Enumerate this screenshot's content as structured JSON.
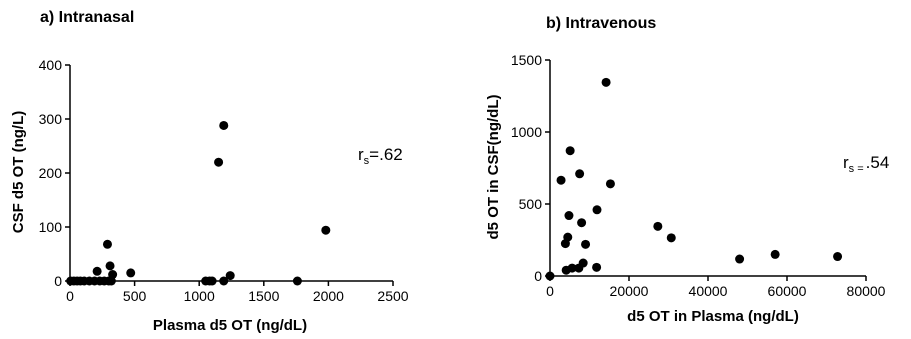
{
  "chart_data": [
    {
      "type": "scatter",
      "panel_title": "a) Intranasal",
      "xlabel": "Plasma d5 OT (ng/dL)",
      "ylabel": "CSF d5 OT (ng/L)",
      "xlim": [
        0,
        2500
      ],
      "ylim": [
        0,
        400
      ],
      "xticks": [
        "0",
        "500",
        "1000",
        "1500",
        "2000",
        "2500"
      ],
      "yticks": [
        "0",
        "100",
        "200",
        "300",
        "400"
      ],
      "correlation": {
        "symbol": "r",
        "subscript": "s",
        "value": "=.62"
      },
      "points": [
        {
          "x": 5,
          "y": 0
        },
        {
          "x": 30,
          "y": 0
        },
        {
          "x": 55,
          "y": 0
        },
        {
          "x": 80,
          "y": 0
        },
        {
          "x": 110,
          "y": 0
        },
        {
          "x": 150,
          "y": 0
        },
        {
          "x": 190,
          "y": 0
        },
        {
          "x": 230,
          "y": 0
        },
        {
          "x": 265,
          "y": 0
        },
        {
          "x": 300,
          "y": 0
        },
        {
          "x": 320,
          "y": 0
        },
        {
          "x": 210,
          "y": 18
        },
        {
          "x": 290,
          "y": 68
        },
        {
          "x": 310,
          "y": 28
        },
        {
          "x": 330,
          "y": 12
        },
        {
          "x": 470,
          "y": 15
        },
        {
          "x": 1050,
          "y": 0
        },
        {
          "x": 1080,
          "y": 0
        },
        {
          "x": 1100,
          "y": 0
        },
        {
          "x": 1150,
          "y": 220
        },
        {
          "x": 1190,
          "y": 288
        },
        {
          "x": 1190,
          "y": 0
        },
        {
          "x": 1240,
          "y": 10
        },
        {
          "x": 1760,
          "y": 0
        },
        {
          "x": 1980,
          "y": 94
        }
      ],
      "grid": false,
      "legend": "none"
    },
    {
      "type": "scatter",
      "panel_title": "b) Intravenous",
      "xlabel": "d5 OT in Plasma (ng/dL)",
      "ylabel": "d5 OT in CSF(ng/dL)",
      "xlim": [
        0,
        80000
      ],
      "ylim": [
        0,
        1500
      ],
      "xticks": [
        "0",
        "20000",
        "40000",
        "60000",
        "80000"
      ],
      "yticks": [
        "0",
        "500",
        "1000",
        "1500"
      ],
      "correlation": {
        "symbol": "r",
        "subscript": "s =",
        "value": ".54"
      },
      "points": [
        {
          "x": 0,
          "y": 0
        },
        {
          "x": 2800,
          "y": 665
        },
        {
          "x": 3900,
          "y": 225
        },
        {
          "x": 4100,
          "y": 40
        },
        {
          "x": 4500,
          "y": 270
        },
        {
          "x": 4800,
          "y": 420
        },
        {
          "x": 5100,
          "y": 870
        },
        {
          "x": 5600,
          "y": 55
        },
        {
          "x": 7300,
          "y": 55
        },
        {
          "x": 7500,
          "y": 710
        },
        {
          "x": 8000,
          "y": 370
        },
        {
          "x": 8400,
          "y": 90
        },
        {
          "x": 9000,
          "y": 220
        },
        {
          "x": 11800,
          "y": 60
        },
        {
          "x": 11900,
          "y": 460
        },
        {
          "x": 14200,
          "y": 1345
        },
        {
          "x": 15300,
          "y": 640
        },
        {
          "x": 27300,
          "y": 345
        },
        {
          "x": 30700,
          "y": 265
        },
        {
          "x": 48000,
          "y": 118
        },
        {
          "x": 57000,
          "y": 150
        },
        {
          "x": 72800,
          "y": 135
        }
      ],
      "grid": false,
      "legend": "none"
    }
  ]
}
